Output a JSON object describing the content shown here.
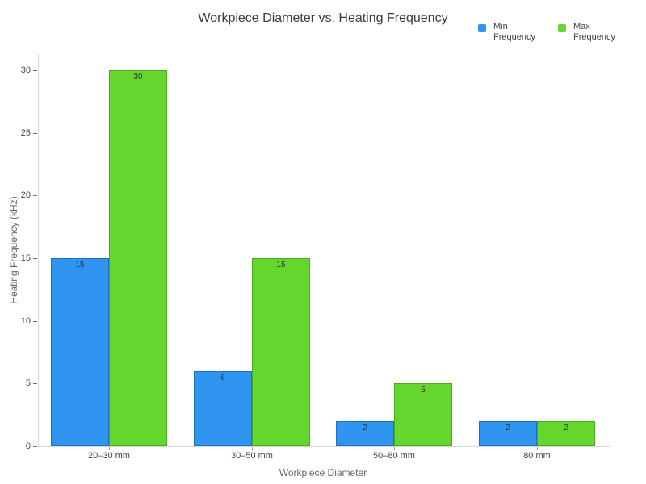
{
  "chart_data": {
    "type": "bar",
    "title": "Workpiece Diameter vs. Heating Frequency",
    "categories": [
      "20–30 mm",
      "30–50 mm",
      "50–80 mm",
      "80 mm"
    ],
    "series": [
      {
        "name": "Min Frequency",
        "values": [
          15,
          6,
          2,
          2
        ],
        "color": "#3094f1",
        "border_color": "#1e6fc4"
      },
      {
        "name": "Max Frequency",
        "values": [
          30,
          15,
          5,
          2
        ],
        "color": "#64d62e",
        "border_color": "#4aad1d"
      }
    ],
    "xlabel": "Workpiece Diameter",
    "ylabel": "Heating Frequency (kHz)",
    "ylim": [
      0,
      30
    ],
    "yticks": [
      0,
      5,
      10,
      15,
      20,
      25,
      30
    ],
    "grid": false,
    "legend_position": "top-right",
    "bar_value_labels": "inside-top",
    "background_color": "#ffffff",
    "axis_line_color": "#d9d9d9",
    "tick_text_color": "#444444",
    "axis_title_color": "#666666",
    "title_color": "#3b3b3b"
  }
}
